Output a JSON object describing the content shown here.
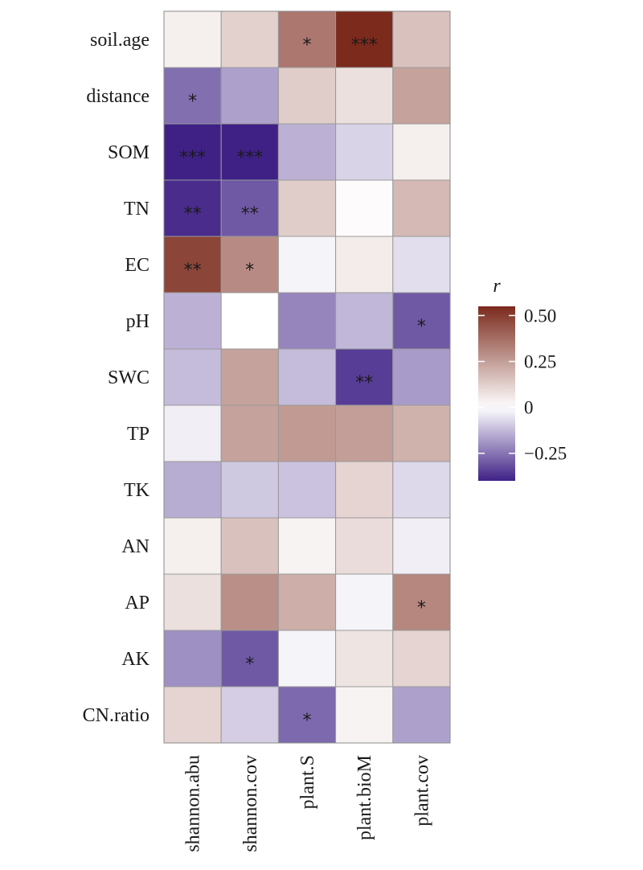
{
  "chart_data": {
    "type": "heatmap",
    "rows": [
      "soil.age",
      "distance",
      "SOM",
      "TN",
      "EC",
      "pH",
      "SWC",
      "TP",
      "TK",
      "AN",
      "AP",
      "AK",
      "CN.ratio"
    ],
    "columns": [
      "shannon.abu",
      "shannon.cov",
      "plant.S",
      "plant.bioM",
      "plant.cov"
    ],
    "values": [
      [
        0.04,
        0.12,
        0.35,
        0.6,
        0.16
      ],
      [
        -0.26,
        -0.17,
        0.13,
        0.08,
        0.24
      ],
      [
        -0.47,
        -0.49,
        -0.14,
        -0.08,
        0.04
      ],
      [
        -0.38,
        -0.3,
        0.13,
        0.01,
        0.18
      ],
      [
        0.48,
        0.3,
        -0.02,
        0.05,
        -0.06
      ],
      [
        -0.14,
        0.0,
        -0.22,
        -0.13,
        -0.3
      ],
      [
        -0.12,
        0.24,
        -0.12,
        -0.35,
        -0.18
      ],
      [
        -0.03,
        0.24,
        0.26,
        0.25,
        0.2
      ],
      [
        -0.15,
        -0.1,
        -0.11,
        0.11,
        -0.07
      ],
      [
        0.04,
        0.16,
        0.03,
        0.09,
        -0.03
      ],
      [
        0.08,
        0.29,
        0.21,
        -0.02,
        0.31
      ],
      [
        -0.2,
        -0.3,
        -0.02,
        0.07,
        0.11
      ],
      [
        0.11,
        -0.09,
        -0.27,
        0.03,
        -0.17
      ]
    ],
    "significance": [
      [
        "",
        "",
        "*",
        "***",
        ""
      ],
      [
        "*",
        "",
        "",
        "",
        ""
      ],
      [
        "***",
        "***",
        "",
        "",
        ""
      ],
      [
        "**",
        "**",
        "",
        "",
        ""
      ],
      [
        "**",
        "*",
        "",
        "",
        ""
      ],
      [
        "",
        "",
        "",
        "",
        "*"
      ],
      [
        "",
        "",
        "",
        "**",
        ""
      ],
      [
        "",
        "",
        "",
        "",
        ""
      ],
      [
        "",
        "",
        "",
        "",
        ""
      ],
      [
        "",
        "",
        "",
        "",
        ""
      ],
      [
        "",
        "",
        "",
        "",
        "*"
      ],
      [
        "",
        "*",
        "",
        "",
        ""
      ],
      [
        "",
        "",
        "*",
        "",
        ""
      ]
    ],
    "legend": {
      "title": "r",
      "range": [
        -0.4,
        0.55
      ],
      "ticks": [
        {
          "value": 0.5,
          "label": "0.50"
        },
        {
          "value": 0.25,
          "label": "0.25"
        },
        {
          "value": 0,
          "label": "0"
        },
        {
          "value": -0.25,
          "label": "−0.25"
        }
      ],
      "placement": "right"
    },
    "colors": {
      "low": "#3f2186",
      "mid": "#ffffff",
      "high": "#7b2a1c"
    },
    "title": "",
    "xlabel": "",
    "ylabel": ""
  }
}
